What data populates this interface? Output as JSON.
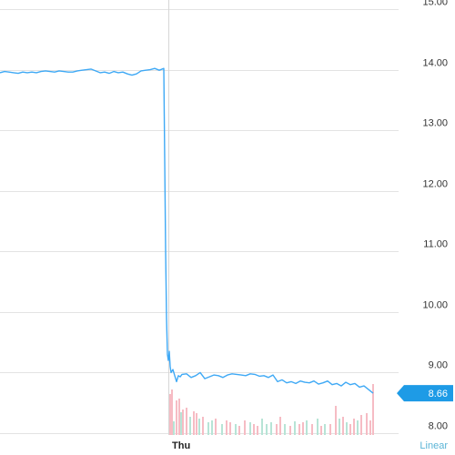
{
  "chart_data": {
    "type": "line",
    "title": "",
    "xlabel": "",
    "ylabel": "",
    "ylim": [
      8.0,
      15.0
    ],
    "y_ticks": [
      "15.00",
      "14.00",
      "13.00",
      "12.00",
      "11.00",
      "10.00",
      "9.00",
      "8.00"
    ],
    "x_tick_labels": [
      "Thu"
    ],
    "grid": true,
    "scale_label": "Linear",
    "last_price": {
      "value": 8.66,
      "label": "8.66"
    },
    "colors": {
      "line": "#3fa9f5",
      "price_tag": "#1e9be6",
      "grid": "#e3e3e3",
      "volume_up": "#b7e4d6",
      "volume_down": "#f6bcc4"
    },
    "series": [
      {
        "x": [
          0,
          5,
          10,
          15,
          20,
          25,
          30,
          35,
          40,
          45,
          50,
          55,
          60,
          65,
          70,
          75,
          80,
          85,
          90,
          95,
          100,
          105,
          110,
          115,
          120,
          125,
          130,
          135,
          140,
          145,
          150,
          155,
          160,
          165,
          170,
          175,
          180,
          181,
          182,
          183,
          184,
          185,
          186,
          187,
          188,
          190,
          192,
          194,
          196,
          198,
          200,
          205,
          210,
          215,
          220,
          225,
          230,
          235,
          240,
          245,
          250,
          255,
          260,
          265,
          270,
          275,
          280,
          285,
          290,
          295,
          300,
          305,
          310,
          315,
          320,
          325,
          330,
          335,
          340,
          345,
          350,
          355,
          360,
          365,
          370,
          375,
          380,
          385,
          390,
          395,
          400,
          405,
          410
        ],
        "y": [
          13.95,
          13.97,
          13.96,
          13.95,
          13.94,
          13.96,
          13.95,
          13.96,
          13.95,
          13.97,
          13.98,
          13.97,
          13.96,
          13.98,
          13.97,
          13.96,
          13.96,
          13.98,
          13.99,
          14.0,
          14.01,
          13.98,
          13.95,
          13.96,
          13.94,
          13.97,
          13.95,
          13.96,
          13.93,
          13.91,
          13.93,
          13.98,
          13.99,
          14.0,
          14.02,
          13.99,
          14.02,
          12.5,
          11.0,
          9.9,
          9.3,
          9.2,
          9.35,
          9.1,
          9.0,
          9.05,
          8.95,
          8.85,
          8.95,
          8.93,
          8.97,
          8.98,
          8.92,
          8.95,
          9.0,
          8.9,
          8.93,
          8.96,
          8.95,
          8.92,
          8.96,
          8.98,
          8.97,
          8.96,
          8.95,
          8.98,
          8.97,
          8.94,
          8.95,
          8.92,
          8.96,
          8.85,
          8.88,
          8.83,
          8.85,
          8.82,
          8.86,
          8.84,
          8.83,
          8.86,
          8.81,
          8.83,
          8.86,
          8.8,
          8.82,
          8.78,
          8.84,
          8.8,
          8.82,
          8.76,
          8.78,
          8.72,
          8.66
        ]
      }
    ],
    "volume": {
      "up": [
        [
          190,
          15
        ],
        [
          198,
          25
        ],
        [
          208,
          20
        ],
        [
          218,
          18
        ],
        [
          228,
          14
        ],
        [
          232,
          16
        ],
        [
          243,
          12
        ],
        [
          258,
          12
        ],
        [
          274,
          14
        ],
        [
          287,
          18
        ],
        [
          292,
          12
        ],
        [
          297,
          14
        ],
        [
          312,
          12
        ],
        [
          323,
          15
        ],
        [
          336,
          16
        ],
        [
          348,
          18
        ],
        [
          356,
          12
        ],
        [
          372,
          18
        ],
        [
          380,
          14
        ],
        [
          392,
          16
        ]
      ],
      "down": [
        [
          186,
          45
        ],
        [
          188,
          50
        ],
        [
          193,
          38
        ],
        [
          196,
          40
        ],
        [
          200,
          28
        ],
        [
          204,
          30
        ],
        [
          212,
          26
        ],
        [
          215,
          24
        ],
        [
          222,
          20
        ],
        [
          236,
          18
        ],
        [
          248,
          16
        ],
        [
          252,
          14
        ],
        [
          262,
          10
        ],
        [
          268,
          16
        ],
        [
          278,
          12
        ],
        [
          282,
          10
        ],
        [
          303,
          12
        ],
        [
          307,
          20
        ],
        [
          318,
          10
        ],
        [
          328,
          12
        ],
        [
          332,
          14
        ],
        [
          342,
          12
        ],
        [
          352,
          10
        ],
        [
          362,
          12
        ],
        [
          368,
          32
        ],
        [
          376,
          20
        ],
        [
          384,
          12
        ],
        [
          388,
          18
        ],
        [
          396,
          22
        ],
        [
          402,
          24
        ],
        [
          406,
          16
        ],
        [
          409,
          56
        ]
      ]
    }
  }
}
